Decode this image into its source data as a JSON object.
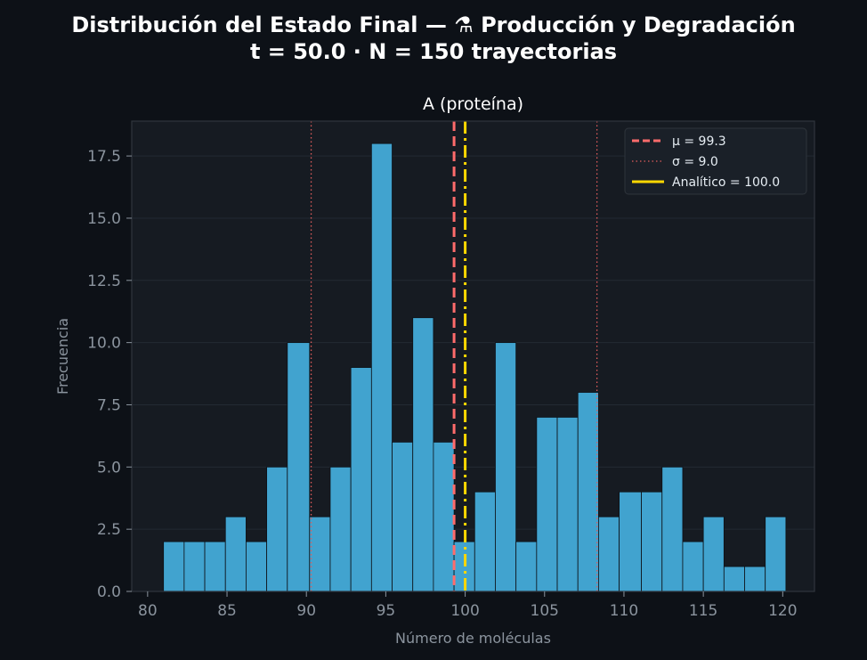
{
  "figure": {
    "title_line1": "Distribución del Estado Final  —  ⚗  Producción y Degradación",
    "title_line2": "t = 50.0  ·  N = 150 trayectorias"
  },
  "chart_data": {
    "type": "bar",
    "title": "A (proteína)",
    "xlabel": "Número de moléculas",
    "ylabel": "Frecuencia",
    "xlim": [
      79,
      122
    ],
    "ylim": [
      0,
      18.9
    ],
    "xticks": [
      80,
      85,
      90,
      95,
      100,
      105,
      110,
      115,
      120
    ],
    "yticks": [
      0.0,
      2.5,
      5.0,
      7.5,
      10.0,
      12.5,
      15.0,
      17.5
    ],
    "grid": true,
    "legend_position": "top-right",
    "bins": [
      {
        "x0": 81.0,
        "x1": 82.3,
        "count": 2
      },
      {
        "x0": 82.3,
        "x1": 83.6,
        "count": 2
      },
      {
        "x0": 83.6,
        "x1": 84.9,
        "count": 2
      },
      {
        "x0": 84.9,
        "x1": 86.2,
        "count": 3
      },
      {
        "x0": 86.2,
        "x1": 87.5,
        "count": 2
      },
      {
        "x0": 87.5,
        "x1": 88.8,
        "count": 5
      },
      {
        "x0": 88.8,
        "x1": 90.2,
        "count": 10
      },
      {
        "x0": 90.2,
        "x1": 91.5,
        "count": 3
      },
      {
        "x0": 91.5,
        "x1": 92.8,
        "count": 5
      },
      {
        "x0": 92.8,
        "x1": 94.1,
        "count": 9
      },
      {
        "x0": 94.1,
        "x1": 95.4,
        "count": 18
      },
      {
        "x0": 95.4,
        "x1": 96.7,
        "count": 6
      },
      {
        "x0": 96.7,
        "x1": 98.0,
        "count": 11
      },
      {
        "x0": 98.0,
        "x1": 99.3,
        "count": 6
      },
      {
        "x0": 99.3,
        "x1": 100.6,
        "count": 2
      },
      {
        "x0": 100.6,
        "x1": 101.9,
        "count": 4
      },
      {
        "x0": 101.9,
        "x1": 103.2,
        "count": 10
      },
      {
        "x0": 103.2,
        "x1": 104.5,
        "count": 2
      },
      {
        "x0": 104.5,
        "x1": 105.8,
        "count": 7
      },
      {
        "x0": 105.8,
        "x1": 107.1,
        "count": 7
      },
      {
        "x0": 107.1,
        "x1": 108.4,
        "count": 8
      },
      {
        "x0": 108.4,
        "x1": 109.7,
        "count": 3
      },
      {
        "x0": 109.7,
        "x1": 111.1,
        "count": 4
      },
      {
        "x0": 111.1,
        "x1": 112.4,
        "count": 4
      },
      {
        "x0": 112.4,
        "x1": 113.7,
        "count": 5
      },
      {
        "x0": 113.7,
        "x1": 115.0,
        "count": 2
      },
      {
        "x0": 115.0,
        "x1": 116.3,
        "count": 3
      },
      {
        "x0": 116.3,
        "x1": 117.6,
        "count": 1
      },
      {
        "x0": 117.6,
        "x1": 118.9,
        "count": 1
      },
      {
        "x0": 118.9,
        "x1": 120.2,
        "count": 3
      }
    ],
    "mean": 99.3,
    "std": 9.0,
    "analytic": 100.0,
    "legend": {
      "mean_label": "μ = 99.3",
      "std_label": "σ = 9.0",
      "analytic_label": "Analítico = 100.0"
    },
    "colors": {
      "bar_fill": "#41a3cf",
      "bar_edge": "#0d1117",
      "mean_line": "#ff6b6b",
      "std_line": "#e05c5c",
      "analytic_line": "#ffd700",
      "grid": "#232a33",
      "axes_bg": "#161b22",
      "figure_bg": "#0d1117",
      "spine": "#30363d"
    }
  }
}
